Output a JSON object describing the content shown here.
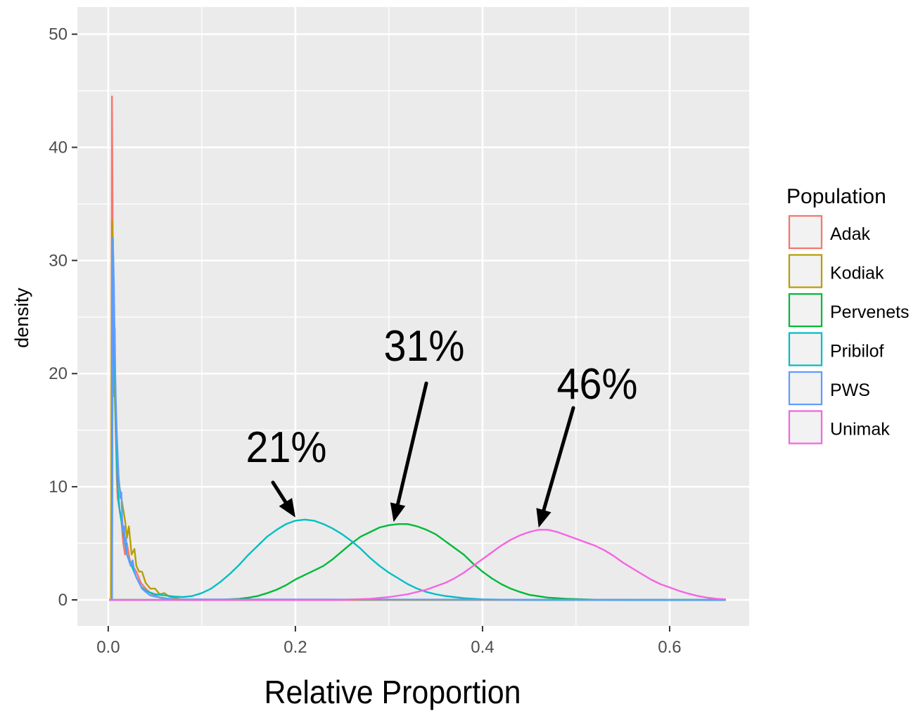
{
  "chart_data": {
    "type": "line",
    "subtype": "density",
    "title": "",
    "xlabel": "Relative Proportion",
    "ylabel": "density",
    "xlim": [
      -0.033,
      0.685
    ],
    "ylim": [
      -2.3,
      52.4
    ],
    "x_ticks": [
      0.0,
      0.2,
      0.4,
      0.6
    ],
    "x_tick_labels": [
      "0.0",
      "0.2",
      "0.4",
      "0.6"
    ],
    "y_ticks": [
      0,
      10,
      20,
      30,
      40,
      50
    ],
    "y_tick_labels": [
      "0",
      "10",
      "20",
      "30",
      "40",
      "50"
    ],
    "grid": true,
    "background": "#ebebeb",
    "grid_color": "#ffffff",
    "legend": {
      "title": "Population",
      "placement": "right",
      "entries": [
        {
          "name": "Adak",
          "color": "#f8766d"
        },
        {
          "name": "Kodiak",
          "color": "#b79f00"
        },
        {
          "name": "Pervenets",
          "color": "#00ba38"
        },
        {
          "name": "Pribilof",
          "color": "#00bfc4"
        },
        {
          "name": "PWS",
          "color": "#619cff"
        },
        {
          "name": "Unimak",
          "color": "#f564e3"
        }
      ]
    },
    "series": [
      {
        "name": "Adak",
        "color": "#f8766d",
        "x": [
          0.001,
          0.002,
          0.003,
          0.004,
          0.005,
          0.006,
          0.007,
          0.008,
          0.009,
          0.01,
          0.012,
          0.014,
          0.016,
          0.018,
          0.02,
          0.023,
          0.026,
          0.03,
          0.035,
          0.04,
          0.045,
          0.055,
          0.07,
          0.66
        ],
        "y": [
          0,
          0,
          0,
          44.5,
          30,
          18,
          24,
          15,
          11,
          9,
          8,
          7,
          5,
          4,
          5,
          3.5,
          3,
          2.5,
          1.5,
          1,
          0.6,
          0.2,
          0,
          0
        ]
      },
      {
        "name": "Kodiak",
        "color": "#b79f00",
        "x": [
          0.001,
          0.002,
          0.003,
          0.004,
          0.005,
          0.006,
          0.007,
          0.008,
          0.009,
          0.01,
          0.012,
          0.014,
          0.016,
          0.018,
          0.02,
          0.022,
          0.025,
          0.028,
          0.03,
          0.033,
          0.036,
          0.04,
          0.045,
          0.05,
          0.055,
          0.06,
          0.065,
          0.07,
          0.08,
          0.66
        ],
        "y": [
          0,
          0,
          0,
          33.5,
          28,
          22,
          18,
          15,
          13,
          11,
          10,
          9,
          8,
          7,
          5.5,
          6.5,
          4,
          4.5,
          3,
          2.5,
          2.5,
          1.5,
          1,
          1,
          0.5,
          0.6,
          0.3,
          0.2,
          0,
          0
        ]
      },
      {
        "name": "Pervenets",
        "color": "#00ba38",
        "x": [
          0.001,
          0.1,
          0.12,
          0.14,
          0.15,
          0.16,
          0.17,
          0.18,
          0.19,
          0.2,
          0.21,
          0.22,
          0.23,
          0.24,
          0.25,
          0.26,
          0.27,
          0.28,
          0.29,
          0.3,
          0.31,
          0.32,
          0.33,
          0.34,
          0.35,
          0.36,
          0.37,
          0.38,
          0.39,
          0.4,
          0.41,
          0.42,
          0.43,
          0.44,
          0.45,
          0.47,
          0.49,
          0.52,
          0.55,
          0.66
        ],
        "y": [
          0,
          0,
          0.02,
          0.1,
          0.2,
          0.35,
          0.6,
          0.9,
          1.3,
          1.8,
          2.2,
          2.6,
          3.0,
          3.6,
          4.3,
          5.0,
          5.6,
          6.0,
          6.4,
          6.6,
          6.7,
          6.7,
          6.5,
          6.2,
          5.8,
          5.2,
          4.6,
          4.0,
          3.2,
          2.5,
          1.9,
          1.4,
          1.0,
          0.7,
          0.45,
          0.2,
          0.1,
          0.02,
          0,
          0
        ]
      },
      {
        "name": "Pribilof",
        "color": "#00bfc4",
        "x": [
          0.001,
          0.004,
          0.005,
          0.006,
          0.007,
          0.008,
          0.009,
          0.01,
          0.012,
          0.014,
          0.016,
          0.018,
          0.02,
          0.025,
          0.03,
          0.035,
          0.04,
          0.05,
          0.06,
          0.07,
          0.08,
          0.09,
          0.1,
          0.11,
          0.12,
          0.13,
          0.14,
          0.15,
          0.16,
          0.17,
          0.18,
          0.19,
          0.2,
          0.21,
          0.22,
          0.23,
          0.24,
          0.25,
          0.26,
          0.27,
          0.28,
          0.29,
          0.3,
          0.31,
          0.32,
          0.33,
          0.34,
          0.35,
          0.36,
          0.37,
          0.38,
          0.4,
          0.42,
          0.45,
          0.66
        ],
        "y": [
          0,
          0,
          32,
          25,
          20,
          16,
          13,
          10,
          8,
          7,
          6,
          5,
          4,
          3,
          2,
          1.2,
          0.8,
          0.5,
          0.4,
          0.3,
          0.25,
          0.35,
          0.6,
          1.0,
          1.6,
          2.3,
          3.1,
          4.0,
          4.8,
          5.6,
          6.2,
          6.7,
          7.0,
          7.1,
          7.0,
          6.7,
          6.3,
          5.8,
          5.2,
          4.5,
          3.7,
          3.0,
          2.4,
          1.9,
          1.4,
          1.0,
          0.7,
          0.5,
          0.35,
          0.25,
          0.15,
          0.05,
          0.02,
          0,
          0
        ]
      },
      {
        "name": "PWS",
        "color": "#619cff",
        "x": [
          0.001,
          0.004,
          0.005,
          0.006,
          0.007,
          0.008,
          0.009,
          0.01,
          0.011,
          0.012,
          0.013,
          0.014,
          0.015,
          0.016,
          0.017,
          0.018,
          0.019,
          0.02,
          0.022,
          0.024,
          0.026,
          0.028,
          0.03,
          0.033,
          0.036,
          0.04,
          0.045,
          0.05,
          0.06,
          0.07,
          0.66
        ],
        "y": [
          0,
          0,
          32,
          28,
          22,
          18,
          15,
          13,
          11,
          10,
          9,
          9.5,
          7,
          6,
          6.5,
          5,
          5.5,
          4,
          3.5,
          3,
          3.5,
          2.5,
          2,
          1.5,
          1,
          0.7,
          0.4,
          0.3,
          0.15,
          0.05,
          0
        ]
      },
      {
        "name": "Unimak",
        "color": "#f564e3",
        "x": [
          0.001,
          0.25,
          0.28,
          0.3,
          0.32,
          0.34,
          0.36,
          0.37,
          0.38,
          0.39,
          0.4,
          0.41,
          0.42,
          0.43,
          0.44,
          0.45,
          0.46,
          0.47,
          0.48,
          0.49,
          0.5,
          0.51,
          0.52,
          0.53,
          0.54,
          0.55,
          0.56,
          0.57,
          0.58,
          0.59,
          0.6,
          0.61,
          0.62,
          0.63,
          0.64,
          0.65,
          0.66
        ],
        "y": [
          0,
          0,
          0.1,
          0.25,
          0.5,
          0.9,
          1.5,
          1.9,
          2.4,
          3.0,
          3.6,
          4.2,
          4.8,
          5.3,
          5.7,
          6.0,
          6.2,
          6.2,
          6.0,
          5.7,
          5.4,
          5.1,
          4.8,
          4.4,
          3.9,
          3.3,
          2.8,
          2.3,
          1.8,
          1.4,
          1.1,
          0.8,
          0.55,
          0.35,
          0.2,
          0.1,
          0.05
        ]
      }
    ],
    "annotations": [
      {
        "text": "21%",
        "target_x": 0.2,
        "target_y": 7.1
      },
      {
        "text": "31%",
        "target_x": 0.305,
        "target_y": 6.7
      },
      {
        "text": "46%",
        "target_x": 0.46,
        "target_y": 6.2
      }
    ]
  }
}
